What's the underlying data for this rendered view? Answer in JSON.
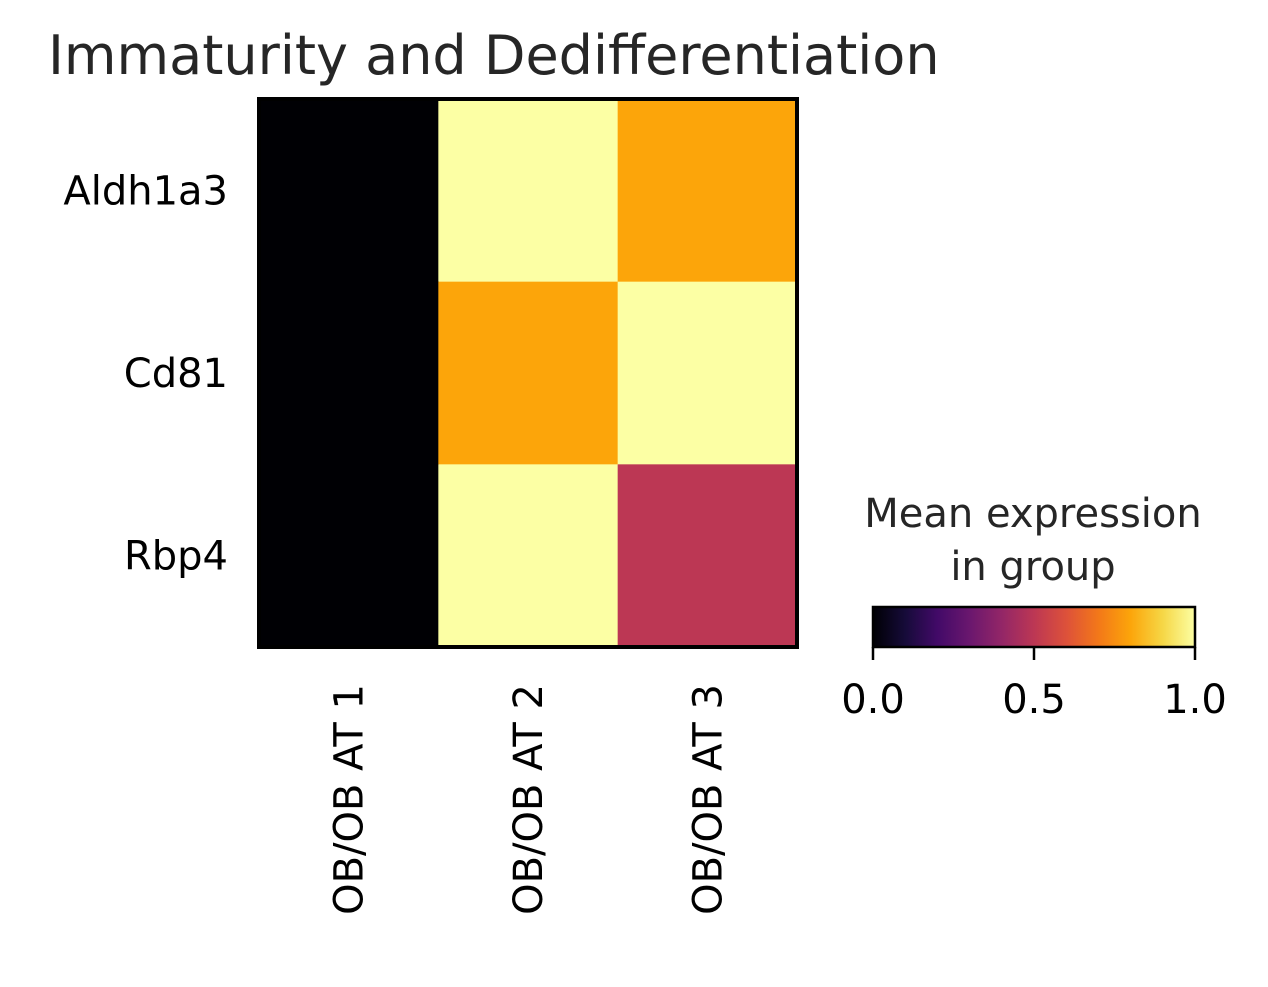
{
  "chart_data": {
    "type": "heatmap",
    "title": "Immaturity and Dedifferentiation",
    "rows": [
      "Aldh1a3",
      "Cd81",
      "Rbp4"
    ],
    "columns": [
      "OB/OB AT 1",
      "OB/OB AT 2",
      "OB/OB AT 3"
    ],
    "values": [
      [
        0.0,
        1.0,
        0.8
      ],
      [
        0.0,
        0.8,
        1.0
      ],
      [
        0.0,
        1.0,
        0.5
      ]
    ],
    "colormap": "inferno",
    "colorbar": {
      "title_lines": [
        "Mean expression",
        "in group"
      ],
      "ticks": [
        0.0,
        0.5,
        1.0
      ],
      "tick_labels": [
        "0.0",
        "0.5",
        "1.0"
      ],
      "range": [
        0,
        1
      ]
    }
  }
}
